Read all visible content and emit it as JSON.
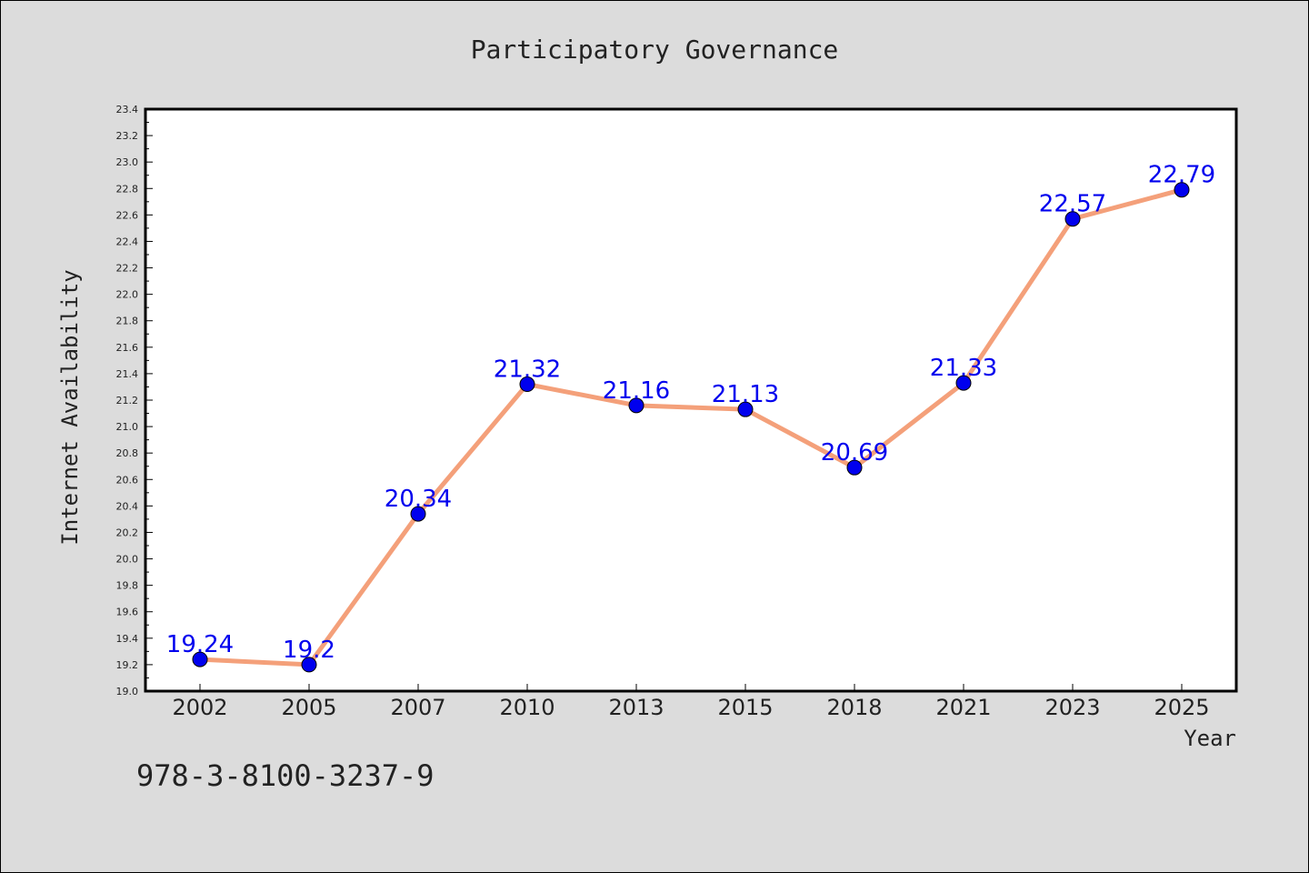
{
  "footnote": "978-3-8100-3237-9",
  "chart_data": {
    "type": "line",
    "title": "Participatory Governance",
    "xlabel": "Year",
    "ylabel": "Internet Availability",
    "categories": [
      "2002",
      "2005",
      "2007",
      "2010",
      "2013",
      "2015",
      "2018",
      "2021",
      "2023",
      "2025"
    ],
    "values": [
      19.24,
      19.2,
      20.34,
      21.32,
      21.16,
      21.13,
      20.69,
      21.33,
      22.57,
      22.79
    ],
    "data_labels": [
      "19.24",
      "19.2",
      "20.34",
      "21.32",
      "21.16",
      "21.13",
      "20.69",
      "21.33",
      "22.57",
      "22.79"
    ],
    "ylim": [
      19.0,
      23.4
    ],
    "yticks": [
      "19.0",
      "19.2",
      "19.4",
      "19.6",
      "19.8",
      "20.0",
      "20.2",
      "20.4",
      "20.6",
      "20.8",
      "21.0",
      "21.2",
      "21.4",
      "21.6",
      "21.8",
      "22.0",
      "22.2",
      "22.4",
      "22.6",
      "22.8",
      "23.0",
      "23.2",
      "23.4"
    ],
    "grid": false,
    "legend": "none",
    "colors": {
      "line": "#f4a07a",
      "marker": "#0000ee",
      "label": "#0000ee",
      "plot_bg": "#ffffff",
      "page_bg": "#dcdcdc"
    }
  }
}
